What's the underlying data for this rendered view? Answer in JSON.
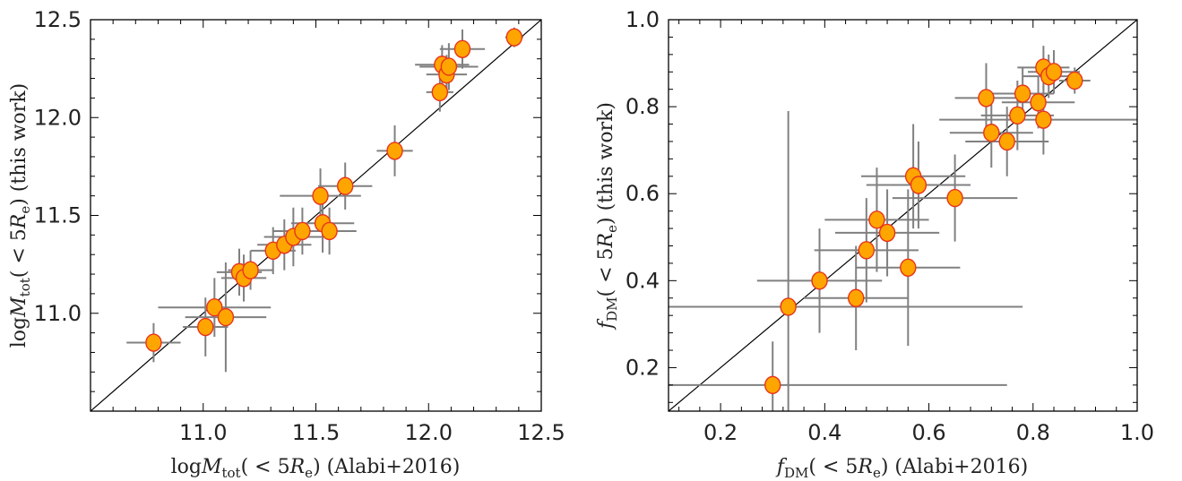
{
  "chart_data": [
    {
      "type": "scatter",
      "xlabel": "logM_tot(<5R_e) (Alabi+2016)",
      "ylabel": "logM_tot(<5R_e) (this work)",
      "xlim": [
        10.5,
        12.5
      ],
      "ylim": [
        10.5,
        12.5
      ],
      "xticks": [
        "11.0",
        "11.5",
        "12.0",
        "12.5"
      ],
      "yticks": [
        "11.0",
        "11.5",
        "12.0",
        "12.5"
      ],
      "one_to_one_line": true,
      "marker_color": "#ffa500",
      "marker_edge": "#e8331c",
      "errorbar_color": "#808080",
      "points": [
        {
          "x": 10.78,
          "y": 10.85,
          "xerr": 0.12,
          "yerr": 0.1
        },
        {
          "x": 11.01,
          "y": 10.93,
          "xerr": 0.1,
          "yerr": 0.15
        },
        {
          "x": 11.05,
          "y": 11.03,
          "xerr": 0.25,
          "yerr": 0.15
        },
        {
          "x": 11.1,
          "y": 10.98,
          "xerr": 0.18,
          "yerr": 0.28
        },
        {
          "x": 11.16,
          "y": 11.21,
          "xerr": 0.1,
          "yerr": 0.12
        },
        {
          "x": 11.18,
          "y": 11.18,
          "xerr": 0.1,
          "yerr": 0.12
        },
        {
          "x": 11.21,
          "y": 11.22,
          "xerr": 0.1,
          "yerr": 0.1
        },
        {
          "x": 11.31,
          "y": 11.32,
          "xerr": 0.1,
          "yerr": 0.12
        },
        {
          "x": 11.36,
          "y": 11.35,
          "xerr": 0.12,
          "yerr": 0.13
        },
        {
          "x": 11.4,
          "y": 11.39,
          "xerr": 0.13,
          "yerr": 0.15
        },
        {
          "x": 11.44,
          "y": 11.42,
          "xerr": 0.13,
          "yerr": 0.12
        },
        {
          "x": 11.53,
          "y": 11.46,
          "xerr": 0.14,
          "yerr": 0.15
        },
        {
          "x": 11.56,
          "y": 11.42,
          "xerr": 0.12,
          "yerr": 0.12
        },
        {
          "x": 11.52,
          "y": 11.6,
          "xerr": 0.18,
          "yerr": 0.14
        },
        {
          "x": 11.63,
          "y": 11.65,
          "xerr": 0.12,
          "yerr": 0.12
        },
        {
          "x": 11.85,
          "y": 11.83,
          "xerr": 0.08,
          "yerr": 0.13
        },
        {
          "x": 12.05,
          "y": 12.13,
          "xerr": 0.06,
          "yerr": 0.1
        },
        {
          "x": 12.06,
          "y": 12.27,
          "xerr": 0.12,
          "yerr": 0.1
        },
        {
          "x": 12.08,
          "y": 12.22,
          "xerr": 0.09,
          "yerr": 0.1
        },
        {
          "x": 12.09,
          "y": 12.26,
          "xerr": 0.13,
          "yerr": 0.12
        },
        {
          "x": 12.15,
          "y": 12.35,
          "xerr": 0.1,
          "yerr": 0.1
        },
        {
          "x": 12.38,
          "y": 12.41,
          "xerr": 0.04,
          "yerr": 0.05
        }
      ]
    },
    {
      "type": "scatter",
      "xlabel": "f_DM(<5R_e) (Alabi+2016)",
      "ylabel": "f_DM(<5R_e) (this work)",
      "xlim": [
        0.1,
        1.0
      ],
      "ylim": [
        0.1,
        1.0
      ],
      "xticks": [
        "0.2",
        "0.4",
        "0.6",
        "0.8",
        "1.0"
      ],
      "yticks": [
        "0.2",
        "0.4",
        "0.6",
        "0.8",
        "1.0"
      ],
      "one_to_one_line": true,
      "marker_color": "#ffa500",
      "marker_edge": "#e8331c",
      "errorbar_color": "#808080",
      "points": [
        {
          "x": 0.3,
          "y": 0.16,
          "xerr": 0.45,
          "yerr": 0.1
        },
        {
          "x": 0.33,
          "y": 0.34,
          "xerr": 0.45,
          "yerr": 0.45
        },
        {
          "x": 0.39,
          "y": 0.4,
          "xerr": 0.12,
          "yerr": 0.12
        },
        {
          "x": 0.46,
          "y": 0.36,
          "xerr": 0.1,
          "yerr": 0.12
        },
        {
          "x": 0.48,
          "y": 0.47,
          "xerr": 0.1,
          "yerr": 0.12
        },
        {
          "x": 0.5,
          "y": 0.54,
          "xerr": 0.1,
          "yerr": 0.12
        },
        {
          "x": 0.52,
          "y": 0.51,
          "xerr": 0.1,
          "yerr": 0.1
        },
        {
          "x": 0.56,
          "y": 0.43,
          "xerr": 0.1,
          "yerr": 0.18
        },
        {
          "x": 0.57,
          "y": 0.64,
          "xerr": 0.1,
          "yerr": 0.12
        },
        {
          "x": 0.58,
          "y": 0.62,
          "xerr": 0.1,
          "yerr": 0.1
        },
        {
          "x": 0.65,
          "y": 0.59,
          "xerr": 0.12,
          "yerr": 0.1
        },
        {
          "x": 0.71,
          "y": 0.82,
          "xerr": 0.06,
          "yerr": 0.08
        },
        {
          "x": 0.72,
          "y": 0.74,
          "xerr": 0.08,
          "yerr": 0.08
        },
        {
          "x": 0.75,
          "y": 0.72,
          "xerr": 0.08,
          "yerr": 0.08
        },
        {
          "x": 0.77,
          "y": 0.78,
          "xerr": 0.07,
          "yerr": 0.08
        },
        {
          "x": 0.78,
          "y": 0.83,
          "xerr": 0.06,
          "yerr": 0.06
        },
        {
          "x": 0.81,
          "y": 0.81,
          "xerr": 0.07,
          "yerr": 0.06
        },
        {
          "x": 0.82,
          "y": 0.77,
          "xerr": 0.2,
          "yerr": 0.08
        },
        {
          "x": 0.82,
          "y": 0.89,
          "xerr": 0.05,
          "yerr": 0.05
        },
        {
          "x": 0.83,
          "y": 0.87,
          "xerr": 0.05,
          "yerr": 0.05
        },
        {
          "x": 0.84,
          "y": 0.88,
          "xerr": 0.05,
          "yerr": 0.05
        },
        {
          "x": 0.88,
          "y": 0.86,
          "xerr": 0.03,
          "yerr": 0.03
        }
      ]
    }
  ]
}
